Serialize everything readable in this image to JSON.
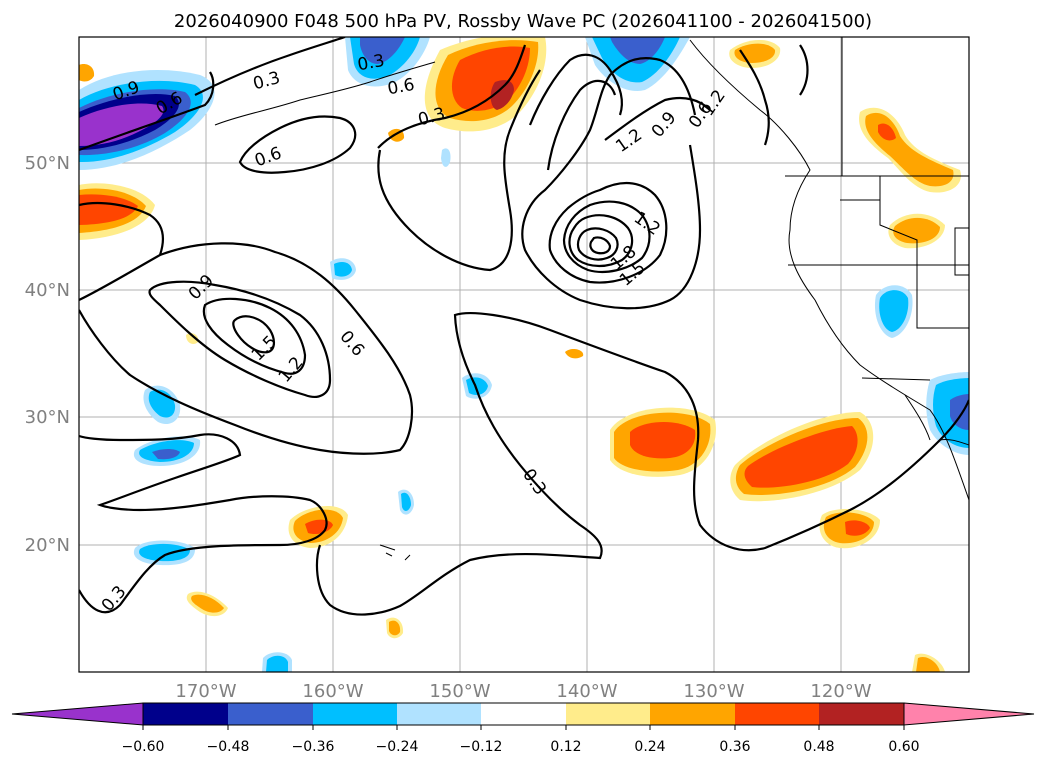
{
  "title": "2026040900 F048 500 hPa PV, Rossby Wave PC (2026041100 - 2026041500)",
  "lon_ticks": [
    "170°W",
    "160°W",
    "150°W",
    "140°W",
    "130°W",
    "120°W"
  ],
  "lat_ticks": [
    "50°N",
    "40°N",
    "30°N",
    "20°N"
  ],
  "contour_labels": [
    "0.9",
    "0.6",
    "0.3",
    "0.6",
    "0.3",
    "0.6",
    "0.3",
    "1.2",
    "0.9",
    "0.6",
    "1.2",
    "1.2",
    "1.8",
    "1.5",
    "0.9",
    "1.5",
    "1.2",
    "0.6",
    "0.3",
    "0.3"
  ],
  "colorbar": {
    "tick_labels": [
      "−0.60",
      "−0.48",
      "−0.36",
      "−0.24",
      "−0.12",
      "0.12",
      "0.24",
      "0.36",
      "0.48",
      "0.60"
    ],
    "colors": [
      "#9932cc",
      "#00008b",
      "#3a5fcd",
      "#00bfff",
      "#b0e2ff",
      "#ffffff",
      "#ffec8b",
      "#ffa500",
      "#ff4500",
      "#b22222",
      "#ff82ab"
    ]
  }
}
